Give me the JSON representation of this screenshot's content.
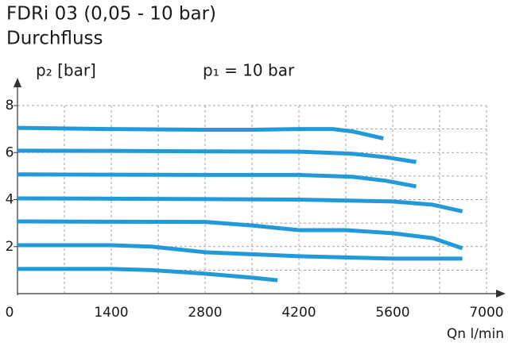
{
  "chart_data": {
    "type": "line",
    "title": "FDRi 03 (0,05 - 10 bar)",
    "subtitle": "Durchfluss",
    "y_label": "p₂ [bar]",
    "annotation": "p₁ = 10 bar",
    "x_label": "Qn l/min",
    "xlim": [
      0,
      7000
    ],
    "xticks": [
      0,
      1400,
      2800,
      4200,
      5600,
      7000
    ],
    "x_minor_ticks": [
      700,
      2100,
      3500,
      4900,
      6300
    ],
    "ylim": [
      0,
      8
    ],
    "yticks": [
      2,
      4,
      6,
      8
    ],
    "y_minor_ticks": [
      1,
      3,
      5,
      7
    ],
    "grid": true,
    "color": "#2299d8",
    "series": [
      {
        "x": [
          0,
          1400,
          2800,
          3500,
          4200,
          4700,
          5000,
          5460
        ],
        "values": [
          7.05,
          7.0,
          6.97,
          6.97,
          7.0,
          7.0,
          6.9,
          6.6
        ]
      },
      {
        "x": [
          0,
          1400,
          2800,
          4200,
          5000,
          5500,
          5950
        ],
        "values": [
          6.08,
          6.07,
          6.05,
          6.04,
          5.95,
          5.8,
          5.6
        ]
      },
      {
        "x": [
          0,
          1400,
          2800,
          4200,
          5000,
          5500,
          5950
        ],
        "values": [
          5.07,
          5.06,
          5.05,
          5.05,
          4.97,
          4.8,
          4.56
        ]
      },
      {
        "x": [
          0,
          1400,
          2800,
          4200,
          5600,
          6200,
          6640
        ],
        "values": [
          4.05,
          4.04,
          4.02,
          4.0,
          3.92,
          3.78,
          3.5
        ]
      },
      {
        "x": [
          0,
          1400,
          2800,
          3500,
          4200,
          4900,
          5600,
          6200,
          6640
        ],
        "values": [
          3.07,
          3.06,
          3.05,
          2.9,
          2.7,
          2.7,
          2.57,
          2.36,
          1.93
        ]
      },
      {
        "x": [
          0,
          1400,
          2000,
          2800,
          4200,
          5600,
          6640
        ],
        "values": [
          2.06,
          2.06,
          2.0,
          1.76,
          1.59,
          1.49,
          1.49
        ]
      },
      {
        "x": [
          0,
          1400,
          2000,
          2800,
          3500,
          3880
        ],
        "values": [
          1.05,
          1.05,
          1.0,
          0.85,
          0.68,
          0.57
        ]
      }
    ]
  }
}
